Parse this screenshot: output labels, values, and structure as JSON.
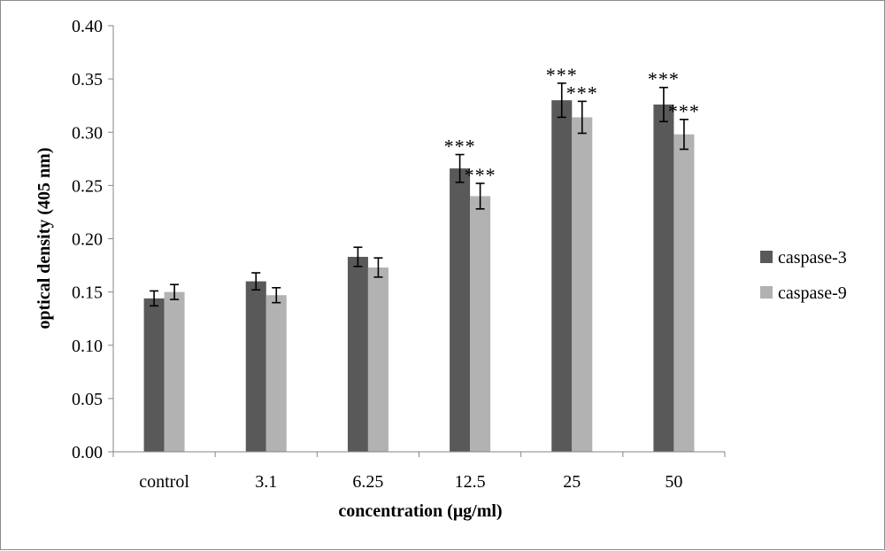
{
  "chart_data": {
    "type": "bar",
    "title": "",
    "xlabel": "concentration (μg/ml)",
    "ylabel": "optical density (405 nm)",
    "ylim": [
      0,
      0.4
    ],
    "yticks": [
      "0.00",
      "0.05",
      "0.10",
      "0.15",
      "0.20",
      "0.25",
      "0.30",
      "0.35",
      "0.40"
    ],
    "categories": [
      "control",
      "3.1",
      "6.25",
      "12.5",
      "25",
      "50"
    ],
    "series": [
      {
        "name": "caspase-3",
        "color": "#595959",
        "values": [
          0.144,
          0.16,
          0.183,
          0.266,
          0.33,
          0.326
        ],
        "errors": [
          0.007,
          0.008,
          0.009,
          0.013,
          0.016,
          0.016
        ],
        "annotations": [
          "",
          "",
          "",
          "***",
          "***",
          "***"
        ]
      },
      {
        "name": "caspase-9",
        "color": "#b2b2b2",
        "values": [
          0.15,
          0.147,
          0.173,
          0.24,
          0.314,
          0.298
        ],
        "errors": [
          0.007,
          0.007,
          0.009,
          0.012,
          0.015,
          0.014
        ],
        "annotations": [
          "",
          "",
          "",
          "***",
          "***",
          "***"
        ]
      }
    ],
    "grid": false,
    "legend_position": "right"
  }
}
